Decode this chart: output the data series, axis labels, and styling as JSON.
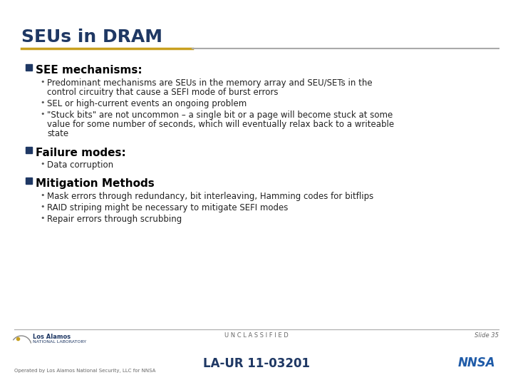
{
  "title": "SEUs in DRAM",
  "title_color": "#1F3864",
  "title_fontsize": 18,
  "separator_color_left": "#C8A020",
  "separator_color_right": "#AAAAAA",
  "bg_color": "#FFFFFF",
  "sections": [
    {
      "header": "SEE mechanisms:",
      "header_fontsize": 11,
      "bullets": [
        "Predominant mechanisms are SEUs in the memory array and SEU/SETs in the\ncontrol circuitry that cause a SEFI mode of burst errors",
        "SEL or high-current events an ongoing problem",
        "\"Stuck bits\" are not uncommon – a single bit or a page will become stuck at some\nvalue for some number of seconds, which will eventually relax back to a writeable\nstate"
      ],
      "bullet_fontsize": 8.5
    },
    {
      "header": "Failure modes:",
      "header_fontsize": 11,
      "bullets": [
        "Data corruption"
      ],
      "bullet_fontsize": 8.5
    },
    {
      "header": "Mitigation Methods",
      "header_fontsize": 11,
      "bullets": [
        "Mask errors through redundancy, bit interleaving, Hamming codes for bitflips",
        "RAID striping might be necessary to mitigate SEFI modes",
        "Repair errors through scrubbing"
      ],
      "bullet_fontsize": 8.5
    }
  ],
  "footer_unclassified": "U N C L A S S I F I E D",
  "footer_laur": "LA-UR 11-03201",
  "footer_slide": "Slide 35",
  "footer_operated": "Operated by Los Alamos National Security, LLC for NNSA",
  "footer_color": "#666666",
  "footer_laur_color": "#1F3864",
  "footer_laur_fontsize": 12,
  "square_color": "#1F3864",
  "bullet_dot_color": "#555555",
  "body_text_color": "#222222"
}
